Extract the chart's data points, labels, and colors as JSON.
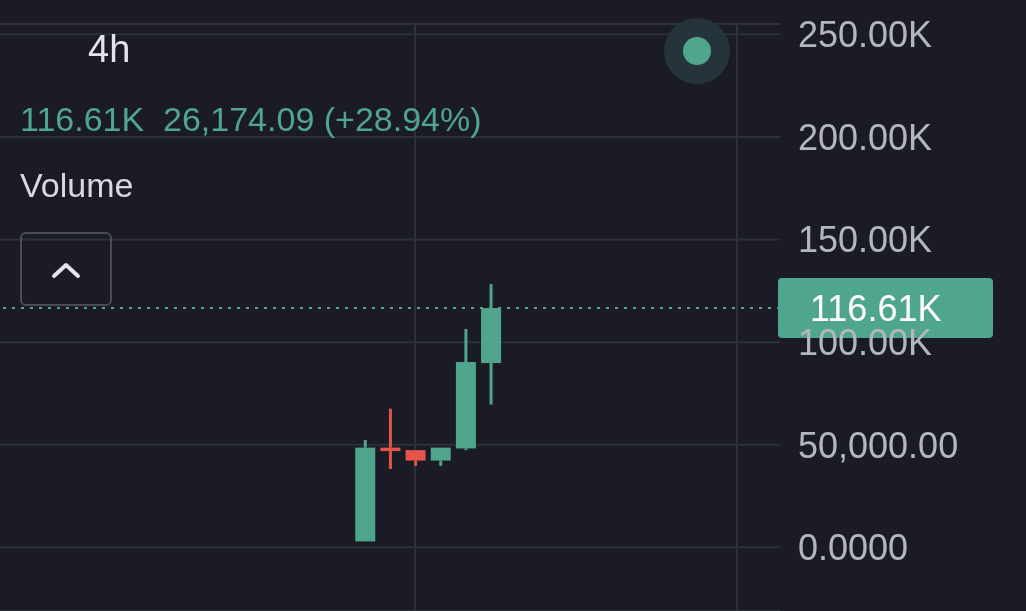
{
  "chart_data": {
    "type": "candlestick",
    "title": "4h",
    "subtitle": "116.61K  26,174.09 (+28.94%)",
    "annotations": [
      "Volume"
    ],
    "categories": [
      null,
      null,
      null,
      null,
      null,
      null,
      null,
      null,
      null,
      null,
      null,
      null,
      null,
      null,
      null,
      null,
      null,
      null,
      null,
      null,
      null,
      null,
      null,
      null,
      null,
      null,
      null,
      null,
      null,
      null,
      null
    ],
    "ohlc": [
      null,
      null,
      null,
      null,
      null,
      null,
      null,
      null,
      null,
      null,
      null,
      null,
      null,
      null,
      [
        2900,
        52300,
        2900,
        48600
      ],
      [
        48600,
        67600,
        38200,
        46900
      ],
      [
        47400,
        47400,
        39700,
        42300
      ],
      [
        42300,
        48600,
        39700,
        48600
      ],
      [
        48200,
        106400,
        47400,
        90300
      ],
      [
        89800,
        128300,
        69600,
        116610
      ],
      null,
      null,
      null,
      null,
      null,
      null,
      null,
      null,
      null,
      null,
      null
    ],
    "colors": [
      null,
      null,
      null,
      null,
      null,
      null,
      null,
      null,
      null,
      null,
      null,
      null,
      null,
      null,
      "#4fa68c",
      "#e5534b",
      "#e5534b",
      "#4fa68c",
      "#4fa68c",
      "#4fa68c",
      null,
      null,
      null,
      null,
      null,
      null,
      null,
      null,
      null,
      null,
      null
    ],
    "ylim": [
      -31000,
      255000
    ],
    "yticks": [
      {
        "value": 0,
        "label": "0.0000"
      },
      {
        "value": 50000,
        "label": "50,000.00"
      },
      {
        "value": 100000,
        "label": "100.00K"
      },
      {
        "value": 150000,
        "label": "150.00K"
      },
      {
        "value": 200000,
        "label": "200.00K"
      },
      {
        "value": 250000,
        "label": "250.00K"
      }
    ],
    "ref_lines": [
      {
        "axis": "y",
        "value": 116610,
        "label": "116.61K",
        "color": "#4fa68c",
        "line_style": "dotted"
      }
    ],
    "grid": true
  }
}
